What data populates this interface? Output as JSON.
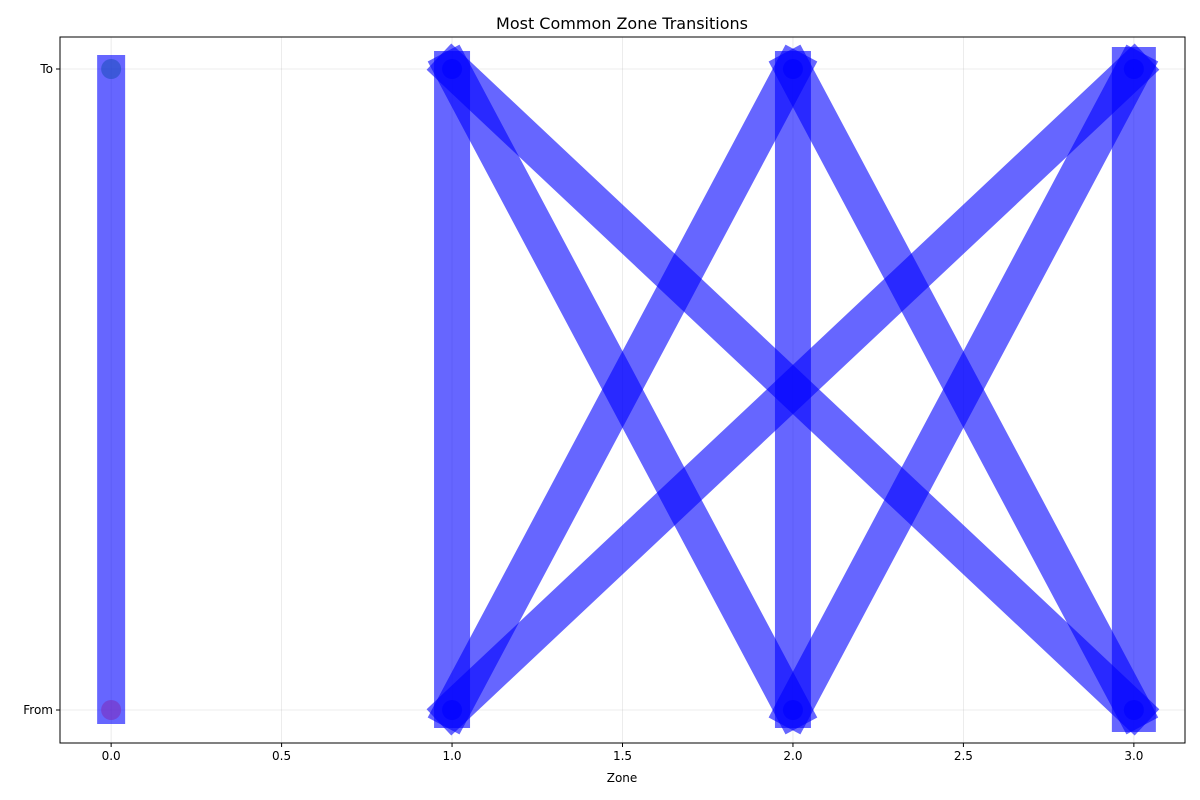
{
  "chart_data": {
    "type": "line",
    "title": "Most Common Zone Transitions",
    "xlabel": "Zone",
    "ylabel": "",
    "xlim": [
      -0.15,
      3.15
    ],
    "x_ticks": [
      "0.0",
      "0.5",
      "1.0",
      "1.5",
      "2.0",
      "2.5",
      "3.0"
    ],
    "x_tick_values": [
      0.0,
      0.5,
      1.0,
      1.5,
      2.0,
      2.5,
      3.0
    ],
    "y_categories": [
      "From",
      "To"
    ],
    "grid": true,
    "transitions": [
      {
        "from": 0,
        "to": 0,
        "count": 2
      },
      {
        "from": 1,
        "to": 1,
        "count": 3
      },
      {
        "from": 2,
        "to": 2,
        "count": 3
      },
      {
        "from": 3,
        "to": 3,
        "count": 4
      },
      {
        "from": 1,
        "to": 2,
        "count": 3
      },
      {
        "from": 1,
        "to": 3,
        "count": 3
      },
      {
        "from": 2,
        "to": 1,
        "count": 3
      },
      {
        "from": 2,
        "to": 3,
        "count": 3
      },
      {
        "from": 3,
        "to": 1,
        "count": 3
      },
      {
        "from": 3,
        "to": 2,
        "count": 3
      }
    ],
    "nodes": [
      {
        "zone": 0,
        "side": "From",
        "color": "#7b2fbf"
      },
      {
        "zone": 0,
        "side": "To",
        "color": "#1f4fbf"
      },
      {
        "zone": 1,
        "side": "From",
        "color": "#0000ff"
      },
      {
        "zone": 1,
        "side": "To",
        "color": "#0000ff"
      },
      {
        "zone": 2,
        "side": "From",
        "color": "#0000ff"
      },
      {
        "zone": 2,
        "side": "To",
        "color": "#0000ff"
      },
      {
        "zone": 3,
        "side": "From",
        "color": "#0000ff"
      },
      {
        "zone": 3,
        "side": "To",
        "color": "#0000ff"
      }
    ],
    "line_color": "#0000ff"
  }
}
